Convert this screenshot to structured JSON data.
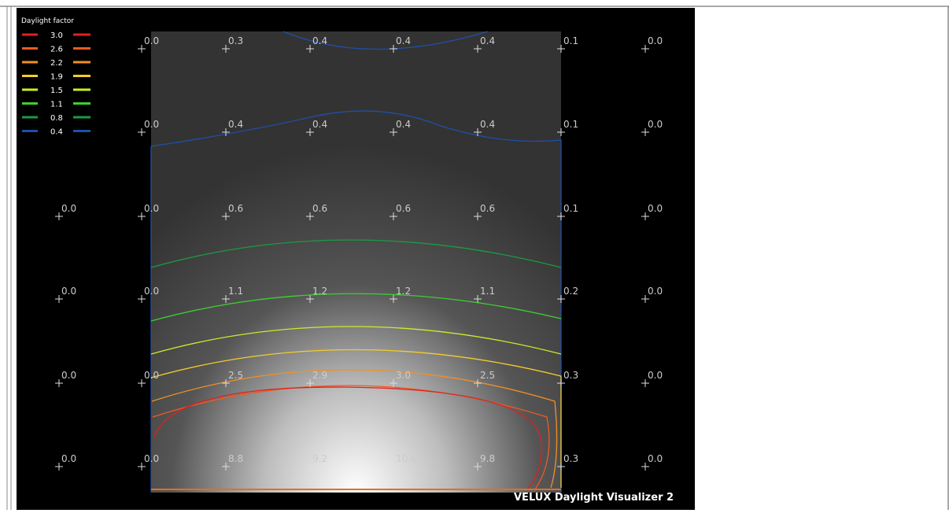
{
  "legend": {
    "title": "Daylight factor",
    "items": [
      {
        "label": "3.0",
        "color": "#e0201c"
      },
      {
        "label": "2.6",
        "color": "#ee5a22"
      },
      {
        "label": "2.2",
        "color": "#f29024"
      },
      {
        "label": "1.9",
        "color": "#f4cc2c"
      },
      {
        "label": "1.5",
        "color": "#c6ee2a"
      },
      {
        "label": "1.1",
        "color": "#3ccf32"
      },
      {
        "label": "0.8",
        "color": "#1d9a44"
      },
      {
        "label": "0.4",
        "color": "#1f4fa8"
      }
    ]
  },
  "grid": {
    "rows": [
      [
        "0.0",
        "0.3",
        "0.4",
        "0.4",
        "0.4",
        "0.1",
        "0.0"
      ],
      [
        "0.0",
        "0.4",
        "0.4",
        "0.4",
        "0.4",
        "0.1",
        "0.0"
      ],
      [
        "0.0",
        "0.0",
        "0.6",
        "0.6",
        "0.6",
        "0.6",
        "0.1",
        "0.0"
      ],
      [
        "0.0",
        "0.0",
        "1.1",
        "1.2",
        "1.2",
        "1.1",
        "0.2",
        "0.0"
      ],
      [
        "0.0",
        "0.0",
        "2.5",
        "2.9",
        "3.0",
        "2.5",
        "0.3",
        "0.0"
      ],
      [
        "0.0",
        "0.0",
        "8.8",
        "9.2",
        "10.6",
        "9.8",
        "0.3",
        "0.0"
      ]
    ]
  },
  "watermark": "VELUX Daylight Visualizer 2"
}
